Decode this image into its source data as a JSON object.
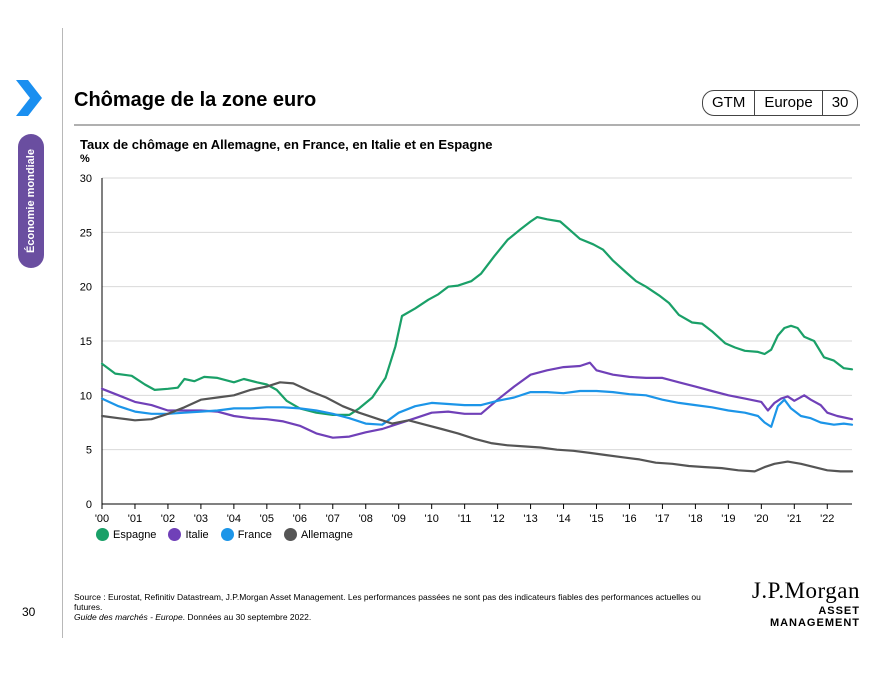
{
  "header": {
    "title": "Chômage de la zone euro",
    "tag": [
      "GTM",
      "Europe",
      "30"
    ]
  },
  "sidebar": {
    "section_label": "Économie mondiale",
    "accent_color": "#6a4ea0"
  },
  "page_number": "30",
  "footer": {
    "source": "Source : Eurostat, Refinitiv Datastream, J.P.Morgan Asset Management. Les performances passées ne sont pas des indicateurs fiables des performances actuelles ou futures.",
    "guide_title": "Guide des marchés - Europe",
    "guide_suffix": ". Données au 30 septembre 2022."
  },
  "logo": {
    "line1": "J.P.Morgan",
    "line2": "ASSET MANAGEMENT"
  },
  "chart_data": {
    "type": "line",
    "title": "Taux de chômage en Allemagne, en France, en Italie et en Espagne",
    "ylabel": "%",
    "ylim": [
      0,
      30
    ],
    "yticks": [
      0,
      5,
      10,
      15,
      20,
      25,
      30
    ],
    "xlim": [
      2000,
      2022.75
    ],
    "xticks": [
      "'00",
      "'01",
      "'02",
      "'03",
      "'04",
      "'05",
      "'06",
      "'07",
      "'08",
      "'09",
      "'10",
      "'11",
      "'12",
      "'13",
      "'14",
      "'15",
      "'16",
      "'17",
      "'18",
      "'19",
      "'20",
      "'21",
      "'22"
    ],
    "grid": true,
    "legend_position": "bottom-left",
    "series": [
      {
        "name": "Espagne",
        "color": "#1aa068",
        "points": [
          [
            2000,
            12.9
          ],
          [
            2000.4,
            12.0
          ],
          [
            2000.9,
            11.8
          ],
          [
            2001.3,
            11.0
          ],
          [
            2001.6,
            10.5
          ],
          [
            2002.0,
            10.6
          ],
          [
            2002.3,
            10.7
          ],
          [
            2002.5,
            11.5
          ],
          [
            2002.8,
            11.3
          ],
          [
            2003.1,
            11.7
          ],
          [
            2003.5,
            11.6
          ],
          [
            2004.0,
            11.2
          ],
          [
            2004.3,
            11.5
          ],
          [
            2004.7,
            11.2
          ],
          [
            2005.0,
            11.0
          ],
          [
            2005.3,
            10.5
          ],
          [
            2005.6,
            9.5
          ],
          [
            2006.0,
            8.8
          ],
          [
            2006.5,
            8.4
          ],
          [
            2007.0,
            8.2
          ],
          [
            2007.5,
            8.2
          ],
          [
            2007.8,
            8.8
          ],
          [
            2008.2,
            9.8
          ],
          [
            2008.6,
            11.6
          ],
          [
            2008.9,
            14.5
          ],
          [
            2009.1,
            17.3
          ],
          [
            2009.5,
            18.0
          ],
          [
            2009.9,
            18.8
          ],
          [
            2010.2,
            19.3
          ],
          [
            2010.5,
            20.0
          ],
          [
            2010.8,
            20.1
          ],
          [
            2011.2,
            20.5
          ],
          [
            2011.5,
            21.2
          ],
          [
            2011.9,
            22.8
          ],
          [
            2012.3,
            24.3
          ],
          [
            2012.7,
            25.3
          ],
          [
            2013.0,
            26.0
          ],
          [
            2013.2,
            26.4
          ],
          [
            2013.5,
            26.2
          ],
          [
            2013.9,
            26.0
          ],
          [
            2014.2,
            25.2
          ],
          [
            2014.5,
            24.4
          ],
          [
            2014.9,
            23.9
          ],
          [
            2015.2,
            23.4
          ],
          [
            2015.5,
            22.4
          ],
          [
            2015.9,
            21.3
          ],
          [
            2016.2,
            20.5
          ],
          [
            2016.5,
            20.0
          ],
          [
            2016.9,
            19.2
          ],
          [
            2017.2,
            18.5
          ],
          [
            2017.5,
            17.4
          ],
          [
            2017.9,
            16.7
          ],
          [
            2018.2,
            16.6
          ],
          [
            2018.5,
            15.9
          ],
          [
            2018.9,
            14.8
          ],
          [
            2019.2,
            14.4
          ],
          [
            2019.5,
            14.1
          ],
          [
            2019.9,
            14.0
          ],
          [
            2020.1,
            13.8
          ],
          [
            2020.3,
            14.2
          ],
          [
            2020.5,
            15.5
          ],
          [
            2020.7,
            16.2
          ],
          [
            2020.9,
            16.4
          ],
          [
            2021.1,
            16.2
          ],
          [
            2021.3,
            15.4
          ],
          [
            2021.6,
            15.0
          ],
          [
            2021.9,
            13.5
          ],
          [
            2022.2,
            13.2
          ],
          [
            2022.5,
            12.5
          ],
          [
            2022.75,
            12.4
          ]
        ]
      },
      {
        "name": "Italie",
        "color": "#7040b8",
        "points": [
          [
            2000,
            10.6
          ],
          [
            2000.5,
            10.0
          ],
          [
            2001.0,
            9.4
          ],
          [
            2001.5,
            9.1
          ],
          [
            2002.0,
            8.6
          ],
          [
            2002.5,
            8.6
          ],
          [
            2003.0,
            8.6
          ],
          [
            2003.5,
            8.5
          ],
          [
            2004.0,
            8.1
          ],
          [
            2004.5,
            7.9
          ],
          [
            2005.0,
            7.8
          ],
          [
            2005.5,
            7.6
          ],
          [
            2006.0,
            7.2
          ],
          [
            2006.5,
            6.5
          ],
          [
            2007.0,
            6.1
          ],
          [
            2007.5,
            6.2
          ],
          [
            2008.0,
            6.6
          ],
          [
            2008.5,
            6.9
          ],
          [
            2009.0,
            7.4
          ],
          [
            2009.5,
            7.9
          ],
          [
            2010.0,
            8.4
          ],
          [
            2010.5,
            8.5
          ],
          [
            2011.0,
            8.3
          ],
          [
            2011.5,
            8.3
          ],
          [
            2012.0,
            9.6
          ],
          [
            2012.5,
            10.8
          ],
          [
            2013.0,
            11.9
          ],
          [
            2013.5,
            12.3
          ],
          [
            2014.0,
            12.6
          ],
          [
            2014.5,
            12.7
          ],
          [
            2014.8,
            13.0
          ],
          [
            2015.0,
            12.3
          ],
          [
            2015.5,
            11.9
          ],
          [
            2016.0,
            11.7
          ],
          [
            2016.5,
            11.6
          ],
          [
            2017.0,
            11.6
          ],
          [
            2017.5,
            11.2
          ],
          [
            2018.0,
            10.8
          ],
          [
            2018.5,
            10.4
          ],
          [
            2019.0,
            10.0
          ],
          [
            2019.5,
            9.7
          ],
          [
            2020.0,
            9.4
          ],
          [
            2020.2,
            8.6
          ],
          [
            2020.4,
            9.3
          ],
          [
            2020.6,
            9.7
          ],
          [
            2020.8,
            9.9
          ],
          [
            2021.0,
            9.5
          ],
          [
            2021.3,
            10.0
          ],
          [
            2021.5,
            9.6
          ],
          [
            2021.8,
            9.1
          ],
          [
            2022.0,
            8.4
          ],
          [
            2022.3,
            8.1
          ],
          [
            2022.75,
            7.8
          ]
        ]
      },
      {
        "name": "France",
        "color": "#1c95e8",
        "points": [
          [
            2000,
            9.7
          ],
          [
            2000.5,
            9.0
          ],
          [
            2001.0,
            8.5
          ],
          [
            2001.5,
            8.3
          ],
          [
            2002.0,
            8.3
          ],
          [
            2002.5,
            8.4
          ],
          [
            2003.0,
            8.5
          ],
          [
            2003.5,
            8.6
          ],
          [
            2004.0,
            8.8
          ],
          [
            2004.5,
            8.8
          ],
          [
            2005.0,
            8.9
          ],
          [
            2005.5,
            8.9
          ],
          [
            2006.0,
            8.8
          ],
          [
            2006.5,
            8.6
          ],
          [
            2007.0,
            8.3
          ],
          [
            2007.5,
            7.9
          ],
          [
            2008.0,
            7.4
          ],
          [
            2008.5,
            7.3
          ],
          [
            2009.0,
            8.4
          ],
          [
            2009.5,
            9.0
          ],
          [
            2010.0,
            9.3
          ],
          [
            2010.5,
            9.2
          ],
          [
            2011.0,
            9.1
          ],
          [
            2011.5,
            9.1
          ],
          [
            2012.0,
            9.5
          ],
          [
            2012.5,
            9.8
          ],
          [
            2013.0,
            10.3
          ],
          [
            2013.5,
            10.3
          ],
          [
            2014.0,
            10.2
          ],
          [
            2014.5,
            10.4
          ],
          [
            2015.0,
            10.4
          ],
          [
            2015.5,
            10.3
          ],
          [
            2016.0,
            10.1
          ],
          [
            2016.5,
            10.0
          ],
          [
            2017.0,
            9.6
          ],
          [
            2017.5,
            9.3
          ],
          [
            2018.0,
            9.1
          ],
          [
            2018.5,
            8.9
          ],
          [
            2019.0,
            8.6
          ],
          [
            2019.5,
            8.4
          ],
          [
            2019.9,
            8.1
          ],
          [
            2020.1,
            7.5
          ],
          [
            2020.3,
            7.1
          ],
          [
            2020.5,
            9.0
          ],
          [
            2020.7,
            9.6
          ],
          [
            2020.9,
            8.8
          ],
          [
            2021.2,
            8.1
          ],
          [
            2021.5,
            7.9
          ],
          [
            2021.8,
            7.5
          ],
          [
            2022.2,
            7.3
          ],
          [
            2022.5,
            7.4
          ],
          [
            2022.75,
            7.3
          ]
        ]
      },
      {
        "name": "Allemagne",
        "color": "#555555",
        "points": [
          [
            2000,
            8.1
          ],
          [
            2000.5,
            7.9
          ],
          [
            2001.0,
            7.7
          ],
          [
            2001.5,
            7.8
          ],
          [
            2002.0,
            8.3
          ],
          [
            2002.5,
            8.9
          ],
          [
            2003.0,
            9.6
          ],
          [
            2003.5,
            9.8
          ],
          [
            2004.0,
            10.0
          ],
          [
            2004.5,
            10.5
          ],
          [
            2005.0,
            10.8
          ],
          [
            2005.4,
            11.2
          ],
          [
            2005.8,
            11.1
          ],
          [
            2006.3,
            10.4
          ],
          [
            2006.8,
            9.8
          ],
          [
            2007.3,
            9.0
          ],
          [
            2007.8,
            8.4
          ],
          [
            2008.3,
            7.9
          ],
          [
            2008.8,
            7.4
          ],
          [
            2009.3,
            7.7
          ],
          [
            2009.8,
            7.3
          ],
          [
            2010.3,
            6.9
          ],
          [
            2010.8,
            6.5
          ],
          [
            2011.3,
            6.0
          ],
          [
            2011.8,
            5.6
          ],
          [
            2012.3,
            5.4
          ],
          [
            2012.8,
            5.3
          ],
          [
            2013.3,
            5.2
          ],
          [
            2013.8,
            5.0
          ],
          [
            2014.3,
            4.9
          ],
          [
            2014.8,
            4.7
          ],
          [
            2015.3,
            4.5
          ],
          [
            2015.8,
            4.3
          ],
          [
            2016.3,
            4.1
          ],
          [
            2016.8,
            3.8
          ],
          [
            2017.3,
            3.7
          ],
          [
            2017.8,
            3.5
          ],
          [
            2018.3,
            3.4
          ],
          [
            2018.8,
            3.3
          ],
          [
            2019.3,
            3.1
          ],
          [
            2019.8,
            3.0
          ],
          [
            2020.1,
            3.4
          ],
          [
            2020.4,
            3.7
          ],
          [
            2020.8,
            3.9
          ],
          [
            2021.2,
            3.7
          ],
          [
            2021.6,
            3.4
          ],
          [
            2022.0,
            3.1
          ],
          [
            2022.4,
            3.0
          ],
          [
            2022.75,
            3.0
          ]
        ]
      }
    ]
  }
}
